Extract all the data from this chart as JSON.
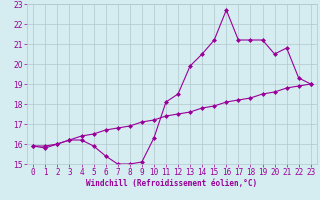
{
  "title": "",
  "xlabel": "Windchill (Refroidissement éolien,°C)",
  "ylabel": "",
  "x_values": [
    0,
    1,
    2,
    3,
    4,
    5,
    6,
    7,
    8,
    9,
    10,
    11,
    12,
    13,
    14,
    15,
    16,
    17,
    18,
    19,
    20,
    21,
    22,
    23
  ],
  "line1_y": [
    15.9,
    15.8,
    16.0,
    16.2,
    16.2,
    15.9,
    15.4,
    15.0,
    15.0,
    15.1,
    16.3,
    18.1,
    18.5,
    19.9,
    20.5,
    21.2,
    22.7,
    21.2,
    21.2,
    21.2,
    20.5,
    20.8,
    19.3,
    19.0
  ],
  "line2_y": [
    15.9,
    15.9,
    16.0,
    16.2,
    16.4,
    16.5,
    16.7,
    16.8,
    16.9,
    17.1,
    17.2,
    17.4,
    17.5,
    17.6,
    17.8,
    17.9,
    18.1,
    18.2,
    18.3,
    18.5,
    18.6,
    18.8,
    18.9,
    19.0
  ],
  "line_color": "#990099",
  "bg_color": "#d5edf0",
  "grid_color": "#b0c8cc",
  "ylim": [
    15,
    23
  ],
  "yticks": [
    15,
    16,
    17,
    18,
    19,
    20,
    21,
    22,
    23
  ],
  "xticks": [
    0,
    1,
    2,
    3,
    4,
    5,
    6,
    7,
    8,
    9,
    10,
    11,
    12,
    13,
    14,
    15,
    16,
    17,
    18,
    19,
    20,
    21,
    22,
    23
  ],
  "marker": "D",
  "marker_size": 2.0,
  "line_width": 0.8,
  "tick_fontsize": 5.5,
  "xlabel_fontsize": 5.5
}
